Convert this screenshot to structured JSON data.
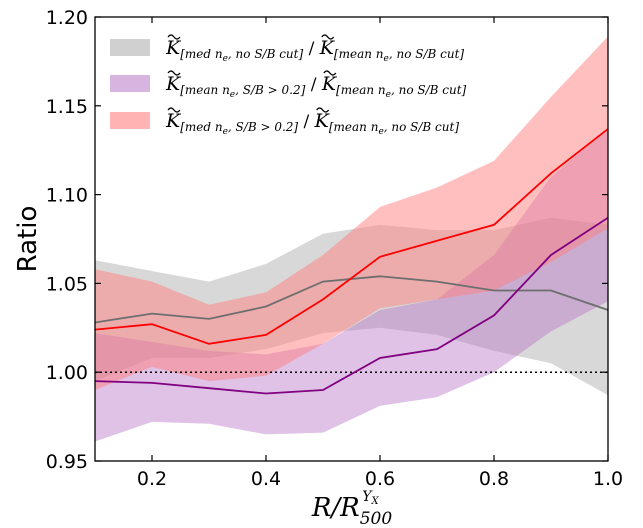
{
  "chart_data": {
    "type": "area",
    "xlabel_base": "R/R",
    "xlabel_sub": "500",
    "xlabel_sup": "Y",
    "xlabel_sup_sub": "X",
    "ylabel": "Ratio",
    "xlim": [
      0.1,
      1.0
    ],
    "ylim": [
      0.95,
      1.2
    ],
    "xticks": [
      "0.2",
      "0.4",
      "0.6",
      "0.8",
      "1.0"
    ],
    "yticks": [
      "0.95",
      "1.00",
      "1.05",
      "1.10",
      "1.15",
      "1.20"
    ],
    "reference_line": 1.0,
    "legend_placement": "top-left",
    "x": [
      0.1,
      0.2,
      0.3,
      0.4,
      0.5,
      0.6,
      0.7,
      0.8,
      0.9,
      1.0
    ],
    "series": [
      {
        "name": "K[med ne, no S/B cut] / K[mean ne, no S/B cut]",
        "legend_num_sub": "[med n",
        "legend_num_rest": ", no S/B cut]",
        "legend_den_sub": "[mean n",
        "legend_den_rest": ", no S/B cut]",
        "fill_color": "#a9a9a9",
        "line_color": "#6e6e6e",
        "fill_opacity": 0.45,
        "line": [
          1.028,
          1.033,
          1.03,
          1.037,
          1.051,
          1.054,
          1.051,
          1.046,
          1.046,
          1.035
        ],
        "upper": [
          1.063,
          1.057,
          1.051,
          1.061,
          1.078,
          1.083,
          1.08,
          1.08,
          1.087,
          1.083
        ],
        "lower": [
          0.995,
          1.008,
          1.008,
          1.013,
          1.022,
          1.025,
          1.021,
          1.012,
          1.005,
          0.987
        ]
      },
      {
        "name": "K[mean ne, S/B>0.2] / K[mean ne, no S/B cut]",
        "legend_num_sub": "[mean n",
        "legend_num_rest": ", S/B > 0.2]",
        "legend_den_sub": "[mean n",
        "legend_den_rest": ", no S/B cut]",
        "fill_color": "#b878c8",
        "line_color": "#800080",
        "fill_opacity": 0.45,
        "line": [
          0.995,
          0.994,
          0.991,
          0.988,
          0.99,
          1.008,
          1.013,
          1.032,
          1.066,
          1.087
        ],
        "upper": [
          1.022,
          1.017,
          1.012,
          1.01,
          1.016,
          1.035,
          1.041,
          1.066,
          1.11,
          1.137
        ],
        "lower": [
          0.961,
          0.972,
          0.971,
          0.965,
          0.966,
          0.981,
          0.986,
          1.0,
          1.023,
          1.04
        ]
      },
      {
        "name": "K[med ne, S/B>0.2] / K[mean ne, no S/B cut]",
        "legend_num_sub": "[med n",
        "legend_num_rest": ", S/B > 0.2]",
        "legend_den_sub": "[mean n",
        "legend_den_rest": ", no S/B cut]",
        "fill_color": "#ff8080",
        "line_color": "#ff0000",
        "fill_opacity": 0.5,
        "line": [
          1.024,
          1.027,
          1.016,
          1.021,
          1.041,
          1.065,
          1.074,
          1.083,
          1.112,
          1.137
        ],
        "upper": [
          1.058,
          1.051,
          1.038,
          1.045,
          1.066,
          1.093,
          1.104,
          1.119,
          1.155,
          1.189
        ],
        "lower": [
          0.99,
          1.003,
          0.995,
          0.998,
          1.016,
          1.036,
          1.041,
          1.046,
          1.062,
          1.081
        ]
      }
    ]
  }
}
